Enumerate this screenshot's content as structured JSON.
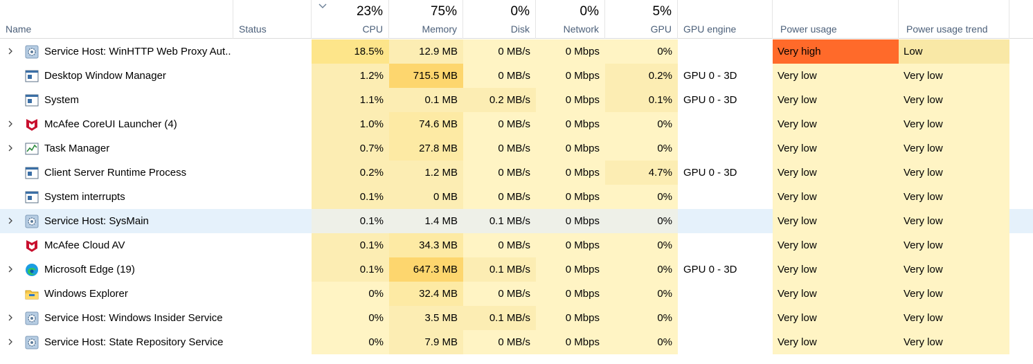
{
  "colors": {
    "heat_light": "#fff4c4",
    "heat_mid": "#fcedb3",
    "heat_strong": "#fdd66e",
    "power_very_high": "#ff6a2a",
    "power_low": "#f9e8a6",
    "selected_row": "#e5f1fb",
    "header_label": "#4c607a"
  },
  "header": {
    "name_label": "Name",
    "status_label": "Status",
    "cpu_pct": "23%",
    "cpu_label": "CPU",
    "memory_pct": "75%",
    "memory_label": "Memory",
    "disk_pct": "0%",
    "disk_label": "Disk",
    "network_pct": "0%",
    "network_label": "Network",
    "gpu_pct": "5%",
    "gpu_label": "GPU",
    "gpu_engine_label": "GPU engine",
    "power_label": "Power usage",
    "power_trend_label": "Power usage trend"
  },
  "processes": [
    {
      "name": "Service Host: WinHTTP Web Proxy Aut...",
      "icon": "gear-icon",
      "expandable": true,
      "cpu": "18.5%",
      "memory": "12.9 MB",
      "disk": "0 MB/s",
      "network": "0 Mbps",
      "gpu": "0%",
      "gpu_engine": "",
      "power": "Very high",
      "power_trend": "Low"
    },
    {
      "name": "Desktop Window Manager",
      "icon": "window-icon",
      "expandable": false,
      "cpu": "1.2%",
      "memory": "715.5 MB",
      "disk": "0 MB/s",
      "network": "0 Mbps",
      "gpu": "0.2%",
      "gpu_engine": "GPU 0 - 3D",
      "power": "Very low",
      "power_trend": "Very low"
    },
    {
      "name": "System",
      "icon": "window-icon",
      "expandable": false,
      "cpu": "1.1%",
      "memory": "0.1 MB",
      "disk": "0.2 MB/s",
      "network": "0 Mbps",
      "gpu": "0.1%",
      "gpu_engine": "GPU 0 - 3D",
      "power": "Very low",
      "power_trend": "Very low"
    },
    {
      "name": "McAfee CoreUI Launcher (4)",
      "icon": "mcafee-icon",
      "expandable": true,
      "cpu": "1.0%",
      "memory": "74.6 MB",
      "disk": "0 MB/s",
      "network": "0 Mbps",
      "gpu": "0%",
      "gpu_engine": "",
      "power": "Very low",
      "power_trend": "Very low"
    },
    {
      "name": "Task Manager",
      "icon": "task-manager-icon",
      "expandable": true,
      "cpu": "0.7%",
      "memory": "27.8 MB",
      "disk": "0 MB/s",
      "network": "0 Mbps",
      "gpu": "0%",
      "gpu_engine": "",
      "power": "Very low",
      "power_trend": "Very low"
    },
    {
      "name": "Client Server Runtime Process",
      "icon": "window-icon",
      "expandable": false,
      "cpu": "0.2%",
      "memory": "1.2 MB",
      "disk": "0 MB/s",
      "network": "0 Mbps",
      "gpu": "4.7%",
      "gpu_engine": "GPU 0 - 3D",
      "power": "Very low",
      "power_trend": "Very low"
    },
    {
      "name": "System interrupts",
      "icon": "window-icon",
      "expandable": false,
      "cpu": "0.1%",
      "memory": "0 MB",
      "disk": "0 MB/s",
      "network": "0 Mbps",
      "gpu": "0%",
      "gpu_engine": "",
      "power": "Very low",
      "power_trend": "Very low"
    },
    {
      "name": "Service Host: SysMain",
      "icon": "gear-icon",
      "expandable": true,
      "selected": true,
      "cpu": "0.1%",
      "memory": "1.4 MB",
      "disk": "0.1 MB/s",
      "network": "0 Mbps",
      "gpu": "0%",
      "gpu_engine": "",
      "power": "Very low",
      "power_trend": "Very low"
    },
    {
      "name": "McAfee Cloud AV",
      "icon": "mcafee-icon",
      "expandable": false,
      "cpu": "0.1%",
      "memory": "34.3 MB",
      "disk": "0 MB/s",
      "network": "0 Mbps",
      "gpu": "0%",
      "gpu_engine": "",
      "power": "Very low",
      "power_trend": "Very low"
    },
    {
      "name": "Microsoft Edge (19)",
      "icon": "edge-icon",
      "expandable": true,
      "cpu": "0.1%",
      "memory": "647.3 MB",
      "disk": "0.1 MB/s",
      "network": "0 Mbps",
      "gpu": "0%",
      "gpu_engine": "GPU 0 - 3D",
      "power": "Very low",
      "power_trend": "Very low"
    },
    {
      "name": "Windows Explorer",
      "icon": "folder-icon",
      "expandable": false,
      "cpu": "0%",
      "memory": "32.4 MB",
      "disk": "0 MB/s",
      "network": "0 Mbps",
      "gpu": "0%",
      "gpu_engine": "",
      "power": "Very low",
      "power_trend": "Very low"
    },
    {
      "name": "Service Host: Windows Insider Service",
      "icon": "gear-icon",
      "expandable": true,
      "cpu": "0%",
      "memory": "3.5 MB",
      "disk": "0.1 MB/s",
      "network": "0 Mbps",
      "gpu": "0%",
      "gpu_engine": "",
      "power": "Very low",
      "power_trend": "Very low"
    },
    {
      "name": "Service Host: State Repository Service",
      "icon": "gear-icon",
      "expandable": true,
      "cpu": "0%",
      "memory": "7.9 MB",
      "disk": "0 MB/s",
      "network": "0 Mbps",
      "gpu": "0%",
      "gpu_engine": "",
      "power": "Very low",
      "power_trend": "Very low"
    }
  ]
}
